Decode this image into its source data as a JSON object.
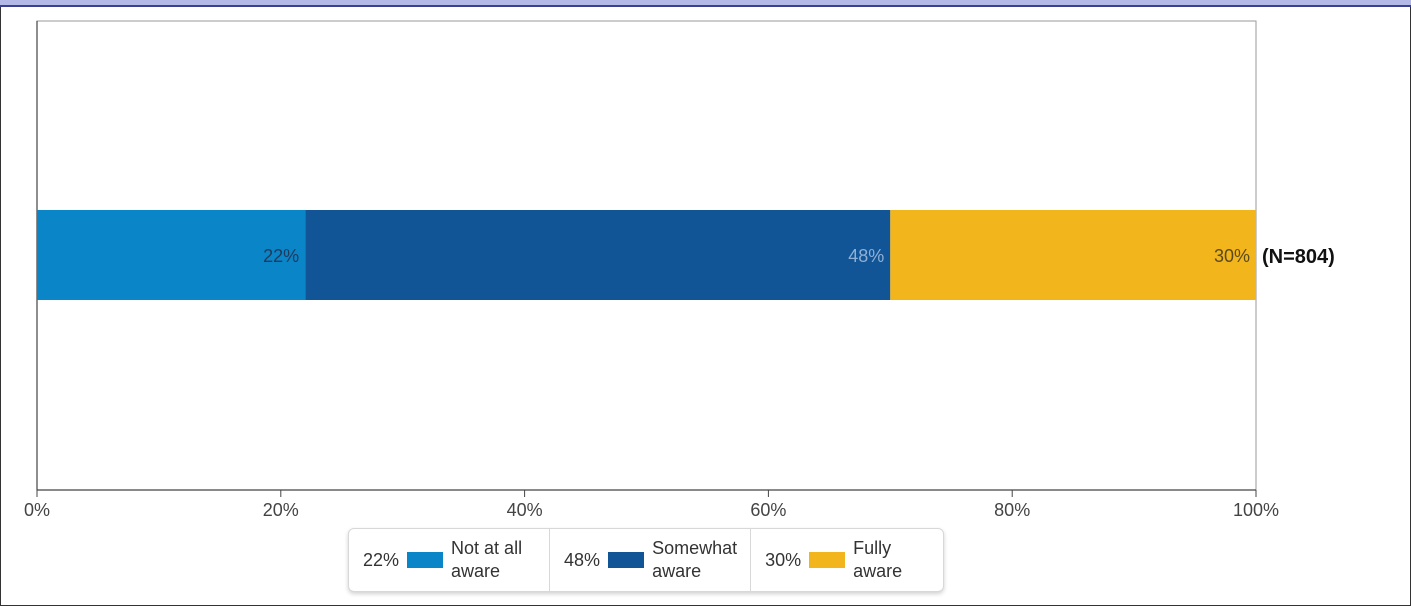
{
  "chart_data": {
    "type": "bar",
    "orientation": "horizontal",
    "stacked": true,
    "categories": [
      ""
    ],
    "series": [
      {
        "name": "Not at all aware",
        "values": [
          22
        ],
        "label": "22%",
        "color": "#0a85c7",
        "label_color": "#1f3a5c"
      },
      {
        "name": "Somewhat aware",
        "values": [
          48
        ],
        "label": "48%",
        "color": "#115596",
        "label_color": "#8fb0d6"
      },
      {
        "name": "Fully aware",
        "values": [
          30
        ],
        "label": "30%",
        "color": "#f2b51c",
        "label_color": "#5a4a20"
      }
    ],
    "total_label": "(N=804)",
    "xlim": [
      0,
      100
    ],
    "x_ticks": [
      {
        "value": 0,
        "label": "0%"
      },
      {
        "value": 20,
        "label": "20%"
      },
      {
        "value": 40,
        "label": "40%"
      },
      {
        "value": 60,
        "label": "60%"
      },
      {
        "value": 80,
        "label": "80%"
      },
      {
        "value": 100,
        "label": "100%"
      }
    ],
    "title": "",
    "xlabel": "",
    "ylabel": "",
    "grid": false,
    "legend_position": "bottom"
  },
  "legend": {
    "items": [
      {
        "pct": "22%",
        "label": "Not at all aware",
        "color": "#0a85c7"
      },
      {
        "pct": "48%",
        "label": "Somewhat aware",
        "color": "#115596"
      },
      {
        "pct": "30%",
        "label": "Fully aware",
        "color": "#f2b51c"
      }
    ]
  }
}
